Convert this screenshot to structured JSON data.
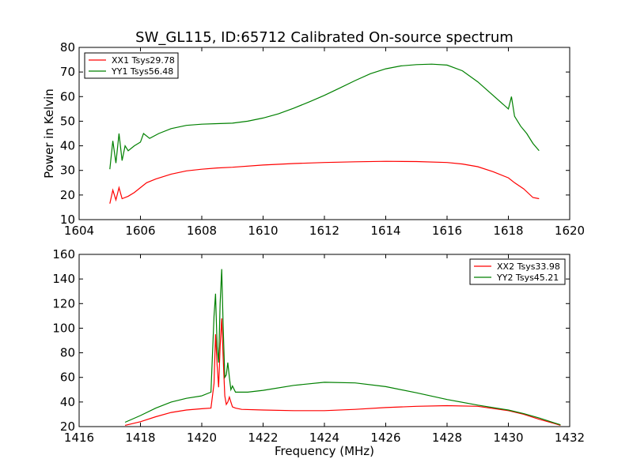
{
  "figure": {
    "title": "SW_GL115, ID:65712 Calibrated On-source spectrum"
  },
  "chart_data": [
    {
      "type": "line",
      "title": "SW_GL115, ID:65712 Calibrated On-source spectrum",
      "xlabel": "",
      "ylabel": "Power in Kelvin",
      "xlim": [
        1604,
        1620
      ],
      "ylim": [
        10,
        80
      ],
      "xticks": [
        "1604",
        "1606",
        "1608",
        "1610",
        "1612",
        "1614",
        "1616",
        "1618",
        "1620"
      ],
      "yticks": [
        "10",
        "20",
        "30",
        "40",
        "50",
        "60",
        "70",
        "80"
      ],
      "grid": false,
      "legend_position": "top-left",
      "series": [
        {
          "name": "XX1 Tsys29.78",
          "color": "#ff0000",
          "x": [
            1605.0,
            1605.1,
            1605.2,
            1605.3,
            1605.4,
            1605.6,
            1605.8,
            1606.0,
            1606.2,
            1606.5,
            1607.0,
            1607.5,
            1608.0,
            1608.5,
            1609.0,
            1610.0,
            1611.0,
            1612.0,
            1613.0,
            1614.0,
            1615.0,
            1616.0,
            1616.5,
            1617.0,
            1617.5,
            1618.0,
            1618.2,
            1618.5,
            1618.8,
            1619.0
          ],
          "y": [
            16.5,
            22.0,
            18.0,
            23.0,
            18.5,
            19.5,
            21.0,
            23.0,
            25.0,
            26.5,
            28.5,
            29.8,
            30.5,
            31.0,
            31.3,
            32.2,
            32.8,
            33.2,
            33.5,
            33.7,
            33.6,
            33.2,
            32.6,
            31.5,
            29.5,
            27.0,
            25.0,
            22.5,
            19.0,
            18.5
          ]
        },
        {
          "name": "YY1 Tsys56.48",
          "color": "#008000",
          "x": [
            1605.0,
            1605.1,
            1605.2,
            1605.3,
            1605.4,
            1605.5,
            1605.6,
            1605.8,
            1606.0,
            1606.1,
            1606.3,
            1606.6,
            1607.0,
            1607.5,
            1608.0,
            1608.5,
            1609.0,
            1609.5,
            1610.0,
            1610.5,
            1611.0,
            1611.5,
            1612.0,
            1612.5,
            1613.0,
            1613.5,
            1614.0,
            1614.5,
            1615.0,
            1615.5,
            1616.0,
            1616.5,
            1617.0,
            1617.5,
            1618.0,
            1618.1,
            1618.2,
            1618.4,
            1618.6,
            1618.8,
            1619.0
          ],
          "y": [
            30.5,
            42.0,
            33.0,
            45.0,
            34.0,
            40.0,
            38.0,
            40.0,
            41.5,
            45.0,
            43.0,
            45.0,
            47.0,
            48.3,
            48.8,
            49.0,
            49.2,
            50.0,
            51.3,
            53.0,
            55.3,
            57.8,
            60.5,
            63.5,
            66.5,
            69.3,
            71.3,
            72.5,
            73.0,
            73.2,
            72.8,
            70.5,
            66.0,
            60.5,
            55.0,
            60.0,
            52.0,
            48.0,
            45.0,
            41.0,
            38.0
          ]
        }
      ]
    },
    {
      "type": "line",
      "title": "",
      "xlabel": "Frequency (MHz)",
      "ylabel": "",
      "xlim": [
        1416,
        1432
      ],
      "ylim": [
        20,
        160
      ],
      "xticks": [
        "1416",
        "1418",
        "1420",
        "1422",
        "1424",
        "1426",
        "1428",
        "1430",
        "1432"
      ],
      "yticks": [
        "20",
        "40",
        "60",
        "80",
        "100",
        "120",
        "140",
        "160"
      ],
      "grid": false,
      "legend_position": "top-right",
      "series": [
        {
          "name": "XX2 Tsys33.98",
          "color": "#ff0000",
          "x": [
            1417.5,
            1418.0,
            1418.5,
            1419.0,
            1419.5,
            1420.0,
            1420.3,
            1420.4,
            1420.45,
            1420.5,
            1420.55,
            1420.6,
            1420.65,
            1420.7,
            1420.75,
            1420.8,
            1420.85,
            1420.9,
            1420.95,
            1421.0,
            1421.1,
            1421.3,
            1422.0,
            1423.0,
            1424.0,
            1425.0,
            1426.0,
            1427.0,
            1428.0,
            1429.0,
            1430.0,
            1430.5,
            1431.0,
            1431.5,
            1431.7
          ],
          "y": [
            21.0,
            24.0,
            28.0,
            31.5,
            33.5,
            34.5,
            35.0,
            55.0,
            95.0,
            70.0,
            52.0,
            85.0,
            108.0,
            75.0,
            45.0,
            38.0,
            40.0,
            44.0,
            40.0,
            36.0,
            35.0,
            34.0,
            33.5,
            33.0,
            33.0,
            34.0,
            35.5,
            36.5,
            37.0,
            36.5,
            33.0,
            30.0,
            26.0,
            22.5,
            21.0
          ]
        },
        {
          "name": "YY2 Tsys45.21",
          "color": "#008000",
          "x": [
            1417.5,
            1418.0,
            1418.5,
            1419.0,
            1419.5,
            1420.0,
            1420.3,
            1420.4,
            1420.45,
            1420.5,
            1420.55,
            1420.6,
            1420.65,
            1420.7,
            1420.75,
            1420.8,
            1420.85,
            1420.9,
            1420.95,
            1421.0,
            1421.1,
            1421.5,
            1422.0,
            1423.0,
            1424.0,
            1425.0,
            1426.0,
            1427.0,
            1428.0,
            1429.0,
            1430.0,
            1430.5,
            1431.0,
            1431.5,
            1431.7
          ],
          "y": [
            23.5,
            29.0,
            35.0,
            40.0,
            43.0,
            45.0,
            48.0,
            110.0,
            128.0,
            85.0,
            72.0,
            120.0,
            148.0,
            100.0,
            60.0,
            62.0,
            72.0,
            60.0,
            50.0,
            53.0,
            48.0,
            48.0,
            49.5,
            53.5,
            56.0,
            55.5,
            52.5,
            47.5,
            42.0,
            37.5,
            33.5,
            30.5,
            27.0,
            23.0,
            21.5
          ]
        }
      ]
    }
  ]
}
